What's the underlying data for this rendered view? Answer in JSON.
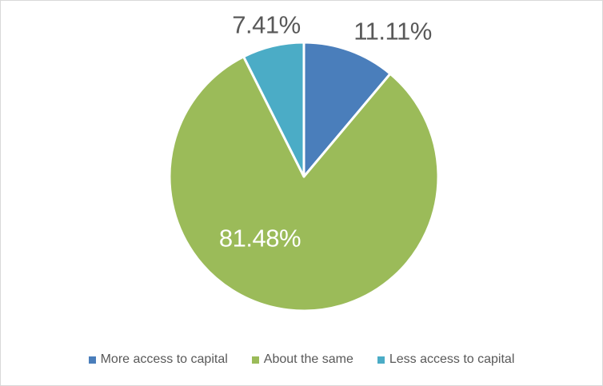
{
  "chart_data": {
    "type": "pie",
    "title": "",
    "legend_position": "bottom",
    "direction": "clockwise",
    "start_angle_deg": 0,
    "slices": [
      {
        "name": "More access to capital",
        "value": 11.11,
        "display": "11.11%",
        "color": "#4A7EBB",
        "label_placement": "outside"
      },
      {
        "name": "About the same",
        "value": 81.48,
        "display": "81.48%",
        "color": "#9BBB59",
        "label_placement": "inside"
      },
      {
        "name": "Less access to capital",
        "value": 7.41,
        "display": "7.41%",
        "color": "#4BACC6",
        "label_placement": "outside"
      }
    ],
    "colors": {
      "outside_label": "#595959",
      "inside_label": "#FFFFFF",
      "legend_text": "#595959",
      "slice_border": "#FFFFFF",
      "chart_border": "#D9D9D9",
      "background": "#FFFFFF"
    }
  }
}
